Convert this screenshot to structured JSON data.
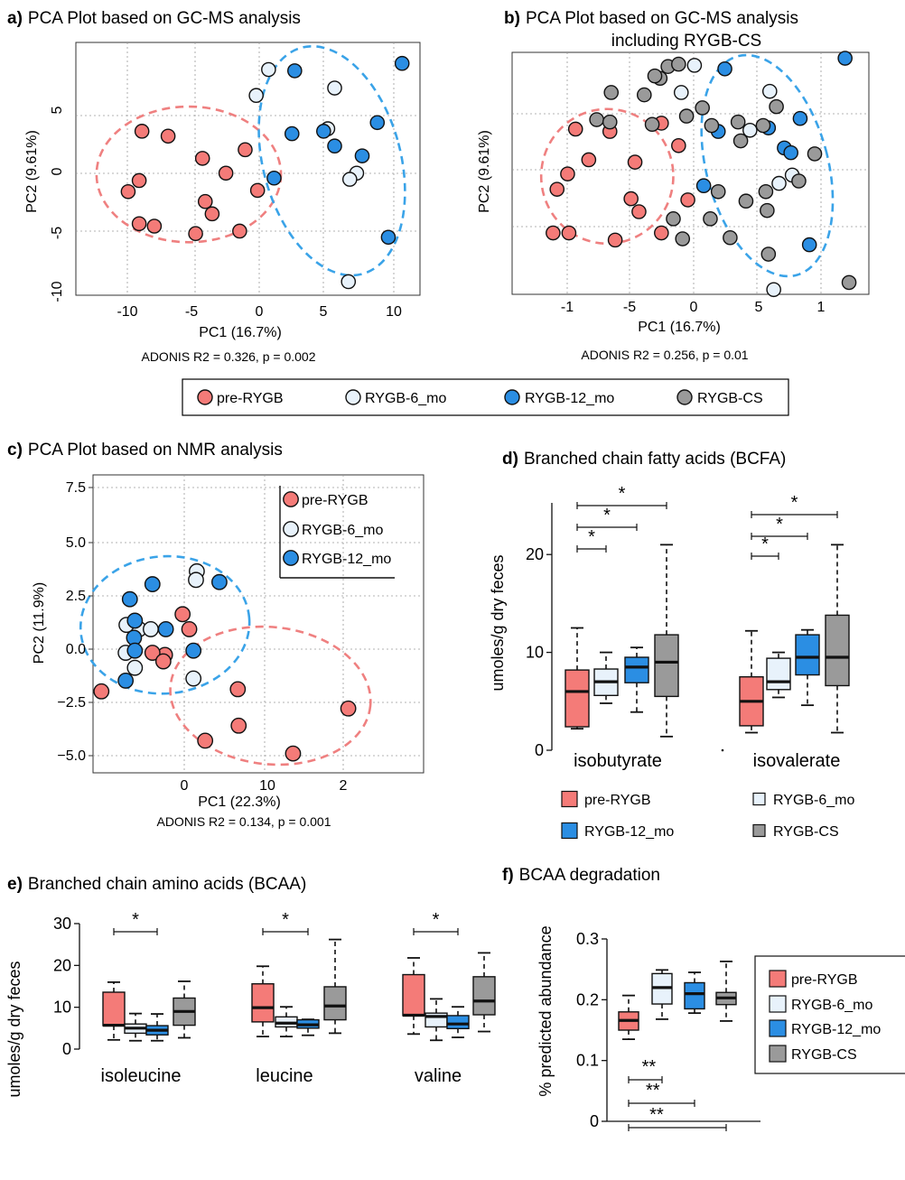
{
  "colors": {
    "pre_rygb": "#f47b78",
    "rygb_6mo": "#e8f2fb",
    "rygb_12mo": "#2b8ee3",
    "rygb_cs": "#9a9a9a",
    "ellipse_pre": "#ef8080",
    "ellipse_post": "#3aa3e8"
  },
  "shared_legend": {
    "items": [
      {
        "label": "pre-RYGB",
        "group": "pre"
      },
      {
        "label": "RYGB-6_mo",
        "group": "m6"
      },
      {
        "label": "RYGB-12_mo",
        "group": "m12"
      },
      {
        "label": "RYGB-CS",
        "group": "cs"
      }
    ]
  },
  "chart_data": [
    {
      "panel": "a)",
      "title": "PCA Plot based on GC-MS analysis",
      "type": "scatter",
      "xlabel": "PC1 (16.7%)",
      "ylabel": "PC2 (9.61%)",
      "footnote": "ADONIS R2 = 0.326, p = 0.002",
      "xticks": [
        "-10",
        "-5",
        "0",
        "5",
        "10"
      ],
      "yticks": [
        "5",
        "0",
        "-5",
        "-10"
      ],
      "xlim": [
        -13,
        12
      ],
      "ylim": [
        -10.5,
        10
      ],
      "grid": true,
      "series": [
        {
          "name": "pre-RYGB",
          "group": "pre",
          "points": [
            [
              -8.2,
              2.8
            ],
            [
              -6.3,
              2.4
            ],
            [
              -3.8,
              0.6
            ],
            [
              -0.7,
              1.3
            ],
            [
              -9.2,
              -2.1
            ],
            [
              -8.4,
              -1.2
            ],
            [
              -2.1,
              -0.6
            ],
            [
              -3.6,
              -2.9
            ],
            [
              -3.1,
              -3.9
            ],
            [
              0.2,
              -2.0
            ],
            [
              -8.4,
              -4.7
            ],
            [
              -7.3,
              -4.9
            ],
            [
              -4.3,
              -5.5
            ],
            [
              -1.1,
              -5.3
            ]
          ]
        },
        {
          "name": "RYGB-6_mo",
          "group": "m6",
          "points": [
            [
              1.0,
              7.8
            ],
            [
              0.1,
              5.7
            ],
            [
              5.8,
              6.3
            ],
            [
              5.3,
              3.0
            ],
            [
              7.4,
              -0.6
            ],
            [
              6.9,
              -1.1
            ],
            [
              6.8,
              -9.4
            ]
          ]
        },
        {
          "name": "RYGB-12_mo",
          "group": "m12",
          "points": [
            [
              10.7,
              8.3
            ],
            [
              2.9,
              7.7
            ],
            [
              2.7,
              2.6
            ],
            [
              5.0,
              2.8
            ],
            [
              5.8,
              1.6
            ],
            [
              8.9,
              3.5
            ],
            [
              7.8,
              0.8
            ],
            [
              1.4,
              -1.0
            ],
            [
              9.7,
              -5.8
            ]
          ]
        }
      ],
      "ellipses": [
        {
          "group": "pre",
          "cx": -4.8,
          "cy": -0.7,
          "rx": 6.7,
          "ry": 5.5,
          "angle": 0
        },
        {
          "group": "post",
          "cx": 5.6,
          "cy": 0.4,
          "rx": 5.0,
          "ry": 9.5,
          "angle": -15
        }
      ]
    },
    {
      "panel": "b)",
      "title": "PCA Plot based on GC-MS  analysis",
      "title_line2": "including RYGB-CS",
      "type": "scatter",
      "xlabel": "PC1 (16.7%)",
      "ylabel": "PC2 (9.61%)",
      "footnote": "ADONIS R2 = 0.256, p = 0.01",
      "xticks": [
        "-1",
        "-5",
        "0",
        "5",
        "1"
      ],
      "yticks": [],
      "xlim": [
        -1.3,
        1.4
      ],
      "ylim": [
        -10.5,
        10
      ],
      "grid": true,
      "series": [
        {
          "name": "pre-RYGB",
          "group": "pre",
          "points": [
            [
              -0.82,
              3.5
            ],
            [
              -0.56,
              3.3
            ],
            [
              -0.17,
              4.0
            ],
            [
              -0.04,
              2.1
            ],
            [
              -0.72,
              0.9
            ],
            [
              -0.37,
              0.7
            ],
            [
              -0.96,
              -1.6
            ],
            [
              -0.88,
              -0.3
            ],
            [
              -0.4,
              -2.4
            ],
            [
              -0.34,
              -3.5
            ],
            [
              0.03,
              -2.5
            ],
            [
              -0.99,
              -5.3
            ],
            [
              -0.87,
              -5.3
            ],
            [
              -0.52,
              -5.9
            ],
            [
              -0.17,
              -5.3
            ]
          ]
        },
        {
          "name": "RYGB-6_mo",
          "group": "m6",
          "points": [
            [
              0.08,
              8.9
            ],
            [
              -0.02,
              6.6
            ],
            [
              0.65,
              6.7
            ],
            [
              0.5,
              3.4
            ],
            [
              0.72,
              -1.1
            ],
            [
              0.82,
              -0.4
            ],
            [
              0.68,
              -10.1
            ]
          ]
        },
        {
          "name": "RYGB-12_mo",
          "group": "m12",
          "points": [
            [
              1.22,
              9.5
            ],
            [
              0.31,
              8.6
            ],
            [
              0.26,
              3.3
            ],
            [
              0.64,
              3.6
            ],
            [
              0.76,
              1.9
            ],
            [
              0.88,
              4.4
            ],
            [
              0.81,
              1.5
            ],
            [
              0.15,
              -1.3
            ],
            [
              0.95,
              -6.3
            ]
          ]
        },
        {
          "name": "RYGB-CS",
          "group": "cs",
          "points": [
            [
              -0.18,
              7.8
            ],
            [
              -0.12,
              8.8
            ],
            [
              -0.22,
              8.0
            ],
            [
              -0.04,
              9.0
            ],
            [
              -0.3,
              6.4
            ],
            [
              -0.55,
              6.6
            ],
            [
              -0.66,
              4.3
            ],
            [
              -0.56,
              4.1
            ],
            [
              -0.24,
              3.9
            ],
            [
              0.02,
              4.6
            ],
            [
              0.14,
              5.3
            ],
            [
              0.21,
              3.8
            ],
            [
              0.41,
              4.1
            ],
            [
              0.43,
              2.5
            ],
            [
              0.7,
              5.4
            ],
            [
              0.6,
              3.8
            ],
            [
              0.99,
              1.4
            ],
            [
              0.87,
              -0.9
            ],
            [
              0.26,
              -1.8
            ],
            [
              0.47,
              -2.6
            ],
            [
              0.62,
              -1.8
            ],
            [
              0.2,
              -4.1
            ],
            [
              0.63,
              -3.4
            ],
            [
              -0.08,
              -4.1
            ],
            [
              -0.01,
              -5.8
            ],
            [
              0.35,
              -5.7
            ],
            [
              0.64,
              -7.1
            ],
            [
              1.25,
              -9.5
            ]
          ]
        }
      ],
      "ellipses": [
        {
          "group": "pre",
          "cx": -0.58,
          "cy": -0.5,
          "rx": 0.5,
          "ry": 5.7,
          "angle": 0
        },
        {
          "group": "post",
          "cx": 0.63,
          "cy": 0.4,
          "rx": 0.46,
          "ry": 9.6,
          "angle": -15
        }
      ]
    },
    {
      "panel": "c)",
      "title": "PCA Plot based on NMR analysis",
      "type": "scatter",
      "xlabel": "PC1 (22.3%)",
      "ylabel": "PC2 (11.9%)",
      "footnote": "ADONIS R2 = 0.134, p = 0.001",
      "xticks": [
        "0",
        "10",
        "2"
      ],
      "yticks": [
        "7.5",
        "5.0",
        "2.5",
        "0.0",
        "−2.5",
        "−5.0"
      ],
      "xlim": [
        -10.5,
        29
      ],
      "ylim": [
        -5.8,
        8.1
      ],
      "grid": true,
      "legend": [
        "pre-RYGB",
        "RYGB-6_mo",
        "RYGB-12_mo"
      ],
      "series": [
        {
          "name": "pre-RYGB",
          "group": "pre",
          "points": [
            [
              0.2,
              1.6
            ],
            [
              1.0,
              0.9
            ],
            [
              -1.9,
              -0.3
            ],
            [
              -3.4,
              -0.2
            ],
            [
              -2.1,
              -0.6
            ],
            [
              -9.5,
              -2.0
            ],
            [
              6.8,
              -1.9
            ],
            [
              20.0,
              -2.8
            ],
            [
              6.9,
              -3.6
            ],
            [
              2.9,
              -4.3
            ],
            [
              13.4,
              -4.9
            ]
          ]
        },
        {
          "name": "RYGB-6_mo",
          "group": "m6",
          "points": [
            [
              1.9,
              3.6
            ],
            [
              1.8,
              3.2
            ],
            [
              -5.0,
              0.9
            ],
            [
              -6.5,
              1.1
            ],
            [
              -3.6,
              0.9
            ],
            [
              -6.6,
              -0.2
            ],
            [
              -5.5,
              -0.9
            ],
            [
              1.5,
              -1.4
            ]
          ]
        },
        {
          "name": "RYGB-12_mo",
          "group": "m12",
          "points": [
            [
              -3.4,
              3.0
            ],
            [
              4.6,
              3.1
            ],
            [
              -6.1,
              2.3
            ],
            [
              -5.5,
              1.3
            ],
            [
              -1.8,
              0.9
            ],
            [
              -5.6,
              0.5
            ],
            [
              -5.5,
              -0.1
            ],
            [
              1.5,
              -0.1
            ],
            [
              -6.6,
              -1.5
            ]
          ]
        }
      ],
      "ellipses": [
        {
          "group": "post",
          "cx": -1.9,
          "cy": 1.1,
          "rx": 10.1,
          "ry": 3.2,
          "angle": -5
        },
        {
          "group": "pre",
          "cx": 10.7,
          "cy": -2.2,
          "rx": 12.0,
          "ry": 3.2,
          "angle": 6
        }
      ]
    },
    {
      "panel": "d)",
      "title": "Branched chain fatty acids (BCFA)",
      "type": "box",
      "ylabel": "umoles/g dry feces",
      "categories": [
        "isobutyrate",
        "isovalerate"
      ],
      "yticks": [
        "0",
        "10",
        "20"
      ],
      "ylim": [
        0,
        25
      ],
      "legend": [
        "pre-RYGB",
        "RYGB-6_mo",
        "RYGB-12_mo",
        "RYGB-CS"
      ],
      "boxes": [
        [
          {
            "group": "pre",
            "min": 2.2,
            "q1": 2.4,
            "median": 6.0,
            "q3": 8.2,
            "max": 12.5
          },
          {
            "group": "m6",
            "min": 4.8,
            "q1": 5.6,
            "median": 7.0,
            "q3": 8.3,
            "max": 10.0
          },
          {
            "group": "m12",
            "min": 3.9,
            "q1": 6.9,
            "median": 8.5,
            "q3": 9.5,
            "max": 10.5
          },
          {
            "group": "cs",
            "min": 1.4,
            "q1": 5.5,
            "median": 9.0,
            "q3": 11.8,
            "max": 21.0
          }
        ],
        [
          {
            "group": "pre",
            "min": 1.8,
            "q1": 2.5,
            "median": 5.0,
            "q3": 7.5,
            "max": 12.2
          },
          {
            "group": "m6",
            "min": 5.4,
            "q1": 6.2,
            "median": 7.0,
            "q3": 9.4,
            "max": 10.0
          },
          {
            "group": "m12",
            "min": 4.6,
            "q1": 7.7,
            "median": 9.5,
            "q3": 11.8,
            "max": 12.3
          },
          {
            "group": "cs",
            "min": 1.8,
            "q1": 6.6,
            "median": 9.5,
            "q3": 13.8,
            "max": 21.0
          }
        ]
      ],
      "significance": [
        {
          "category": 0,
          "from": "pre",
          "to": "m6",
          "label": "*"
        },
        {
          "category": 0,
          "from": "pre",
          "to": "m12",
          "label": "*"
        },
        {
          "category": 0,
          "from": "pre",
          "to": "cs",
          "label": "*"
        },
        {
          "category": 1,
          "from": "pre",
          "to": "m6",
          "label": "*"
        },
        {
          "category": 1,
          "from": "pre",
          "to": "m12",
          "label": "*"
        },
        {
          "category": 1,
          "from": "pre",
          "to": "cs",
          "label": "*"
        }
      ]
    },
    {
      "panel": "e)",
      "title": "Branched chain amino acids (BCAA)",
      "type": "box",
      "ylabel": "umoles/g dry feces",
      "categories": [
        "isoleucine",
        "leucine",
        "valine"
      ],
      "yticks": [
        "0",
        "10",
        "20",
        "30"
      ],
      "ylim": [
        0,
        30
      ],
      "boxes": [
        [
          {
            "group": "pre",
            "min": 2.2,
            "q1": 5.6,
            "median": 5.7,
            "q3": 13.6,
            "max": 16.0
          },
          {
            "group": "m6",
            "min": 2.0,
            "q1": 3.8,
            "median": 5.0,
            "q3": 6.0,
            "max": 8.5
          },
          {
            "group": "m12",
            "min": 2.0,
            "q1": 3.4,
            "median": 4.5,
            "q3": 5.6,
            "max": 8.4
          },
          {
            "group": "cs",
            "min": 2.7,
            "q1": 5.7,
            "median": 9.0,
            "q3": 12.2,
            "max": 16.2
          }
        ],
        [
          {
            "group": "pre",
            "min": 3.0,
            "q1": 6.5,
            "median": 9.9,
            "q3": 15.6,
            "max": 19.8
          },
          {
            "group": "m6",
            "min": 3.0,
            "q1": 5.3,
            "median": 6.2,
            "q3": 7.7,
            "max": 10.1
          },
          {
            "group": "m12",
            "min": 3.3,
            "q1": 5.0,
            "median": 5.8,
            "q3": 7.0,
            "max": 7.1
          },
          {
            "group": "cs",
            "min": 3.8,
            "q1": 7.0,
            "median": 10.3,
            "q3": 14.9,
            "max": 26.2
          }
        ],
        [
          {
            "group": "pre",
            "min": 3.6,
            "q1": 8.0,
            "median": 8.1,
            "q3": 17.8,
            "max": 21.8
          },
          {
            "group": "m6",
            "min": 2.1,
            "q1": 5.3,
            "median": 7.8,
            "q3": 8.6,
            "max": 12.0
          },
          {
            "group": "m12",
            "min": 2.8,
            "q1": 4.9,
            "median": 6.0,
            "q3": 8.0,
            "max": 10.1
          },
          {
            "group": "cs",
            "min": 4.2,
            "q1": 8.2,
            "median": 11.5,
            "q3": 17.3,
            "max": 23.0
          }
        ]
      ],
      "significance": [
        {
          "category": 0,
          "from": "pre",
          "to": "m12",
          "label": "*"
        },
        {
          "category": 1,
          "from": "pre",
          "to": "m12",
          "label": "*"
        },
        {
          "category": 2,
          "from": "pre",
          "to": "m12",
          "label": "*"
        }
      ]
    },
    {
      "panel": "f)",
      "title": "BCAA degradation",
      "type": "box",
      "ylabel": "% predicted abundance",
      "categories": [
        ""
      ],
      "yticks": [
        "0",
        "0.1",
        "0.2",
        "0.3"
      ],
      "ylim": [
        0,
        0.3
      ],
      "legend": [
        "pre-RYGB",
        "RYGB-6_mo",
        "RYGB-12_mo",
        "RYGB-CS"
      ],
      "boxes": [
        [
          {
            "group": "pre",
            "min": 0.135,
            "q1": 0.15,
            "median": 0.166,
            "q3": 0.18,
            "max": 0.207
          },
          {
            "group": "m6",
            "min": 0.168,
            "q1": 0.193,
            "median": 0.22,
            "q3": 0.243,
            "max": 0.249
          },
          {
            "group": "m12",
            "min": 0.178,
            "q1": 0.185,
            "median": 0.21,
            "q3": 0.228,
            "max": 0.245
          },
          {
            "group": "cs",
            "min": 0.165,
            "q1": 0.192,
            "median": 0.203,
            "q3": 0.212,
            "max": 0.263
          }
        ]
      ],
      "significance": [
        {
          "category": 0,
          "from": "pre",
          "to": "m6",
          "label": "**"
        },
        {
          "category": 0,
          "from": "pre",
          "to": "m12",
          "label": "**"
        },
        {
          "category": 0,
          "from": "pre",
          "to": "cs",
          "label": "**"
        }
      ]
    }
  ]
}
